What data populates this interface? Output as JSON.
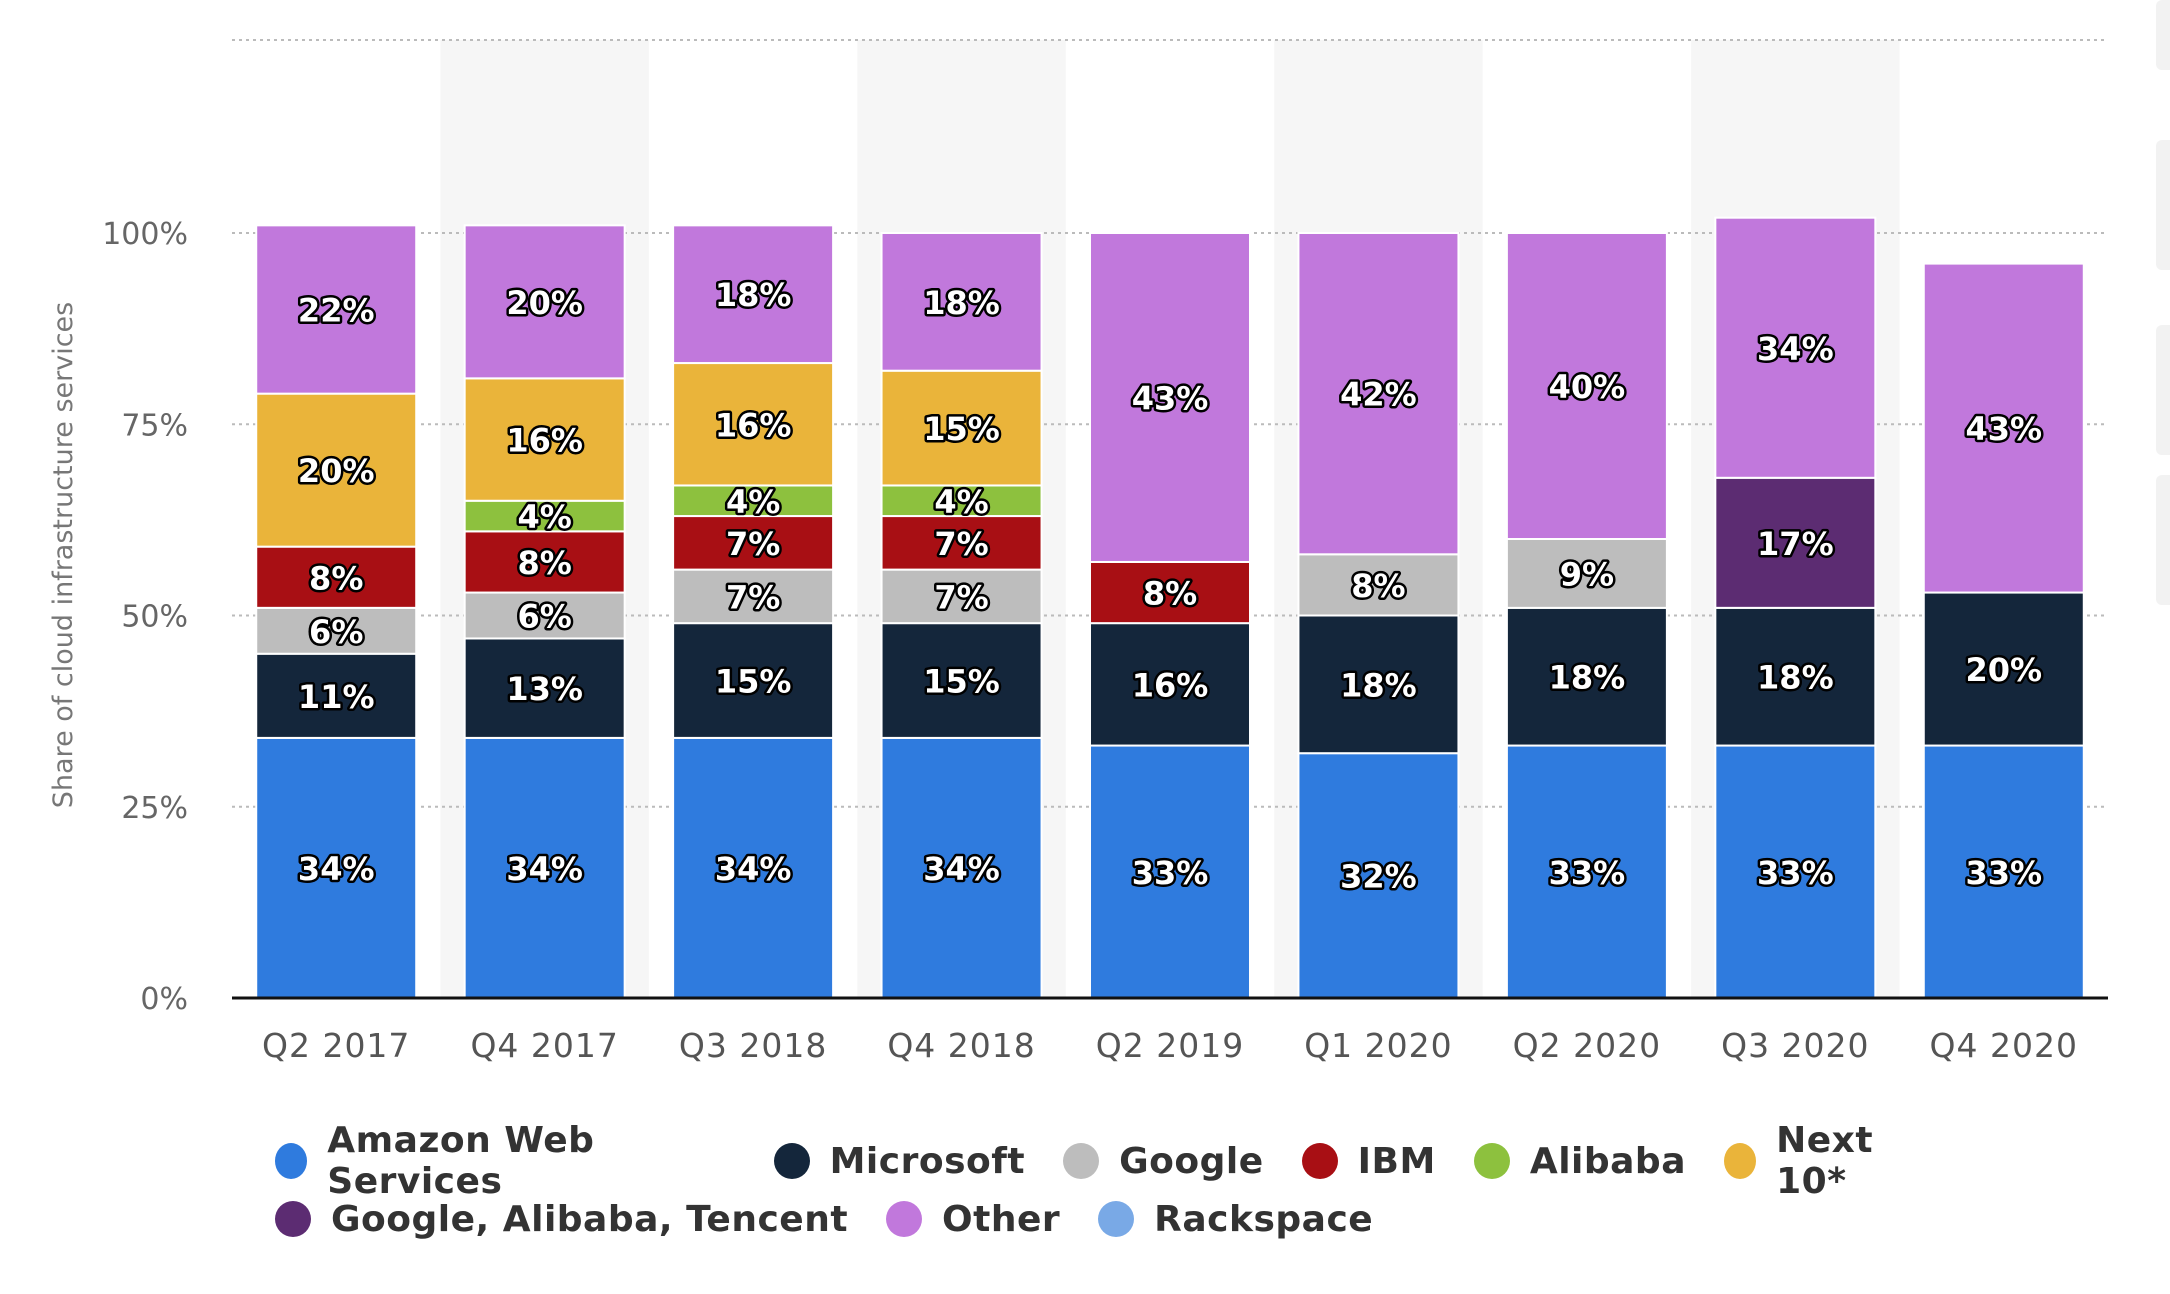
{
  "chart_data": {
    "type": "bar",
    "stacked": true,
    "title": "",
    "xlabel": "",
    "ylabel": "Share of cloud infrastructure services",
    "ylim": [
      0,
      100
    ],
    "yticks": [
      "0%",
      "25%",
      "50%",
      "75%",
      "100%"
    ],
    "categories": [
      "Q2 2017",
      "Q4 2017",
      "Q3 2018",
      "Q4 2018",
      "Q2 2019",
      "Q1 2020",
      "Q2 2020",
      "Q3 2020",
      "Q4 2020"
    ],
    "shaded_columns": [
      1,
      3,
      5,
      7
    ],
    "grid": true,
    "legend_position": "bottom",
    "series": [
      {
        "name": "Amazon Web Services",
        "color": "#2f7bde",
        "values": [
          34,
          34,
          34,
          34,
          33,
          32,
          33,
          33,
          33
        ],
        "labels": [
          "34%",
          "34%",
          "34%",
          "34%",
          "33%",
          "32%",
          "33%",
          "33%",
          "33%"
        ]
      },
      {
        "name": "Microsoft",
        "color": "#14263b",
        "values": [
          11,
          13,
          15,
          15,
          16,
          18,
          18,
          18,
          20
        ],
        "labels": [
          "11%",
          "13%",
          "15%",
          "15%",
          "16%",
          "18%",
          "18%",
          "18%",
          "20%"
        ]
      },
      {
        "name": "Google",
        "color": "#bdbdbd",
        "values": [
          6,
          6,
          7,
          7,
          0,
          8,
          9,
          0,
          0
        ],
        "labels": [
          "6%",
          "6%",
          "7%",
          "7%",
          "",
          "8%",
          "9%",
          "",
          ""
        ]
      },
      {
        "name": "IBM",
        "color": "#a80f14",
        "values": [
          8,
          8,
          7,
          7,
          8,
          0,
          0,
          0,
          0
        ],
        "labels": [
          "8%",
          "8%",
          "7%",
          "7%",
          "8%",
          "",
          "",
          "",
          ""
        ]
      },
      {
        "name": "Alibaba",
        "color": "#8dc13e",
        "values": [
          0,
          4,
          4,
          4,
          0,
          0,
          0,
          0,
          0
        ],
        "labels": [
          "",
          "4%",
          "4%",
          "4%",
          "",
          "",
          "",
          "",
          ""
        ]
      },
      {
        "name": "Next 10*",
        "color": "#eab43a",
        "values": [
          20,
          16,
          16,
          15,
          0,
          0,
          0,
          0,
          0
        ],
        "labels": [
          "20%",
          "16%",
          "16%",
          "15%",
          "",
          "",
          "",
          "",
          ""
        ]
      },
      {
        "name": "Google, Alibaba, Tencent",
        "color": "#5c2c72",
        "values": [
          0,
          0,
          0,
          0,
          0,
          0,
          0,
          17,
          0
        ],
        "labels": [
          "",
          "",
          "",
          "",
          "",
          "",
          "",
          "17%",
          ""
        ]
      },
      {
        "name": "Other",
        "color": "#c178dc",
        "values": [
          22,
          20,
          18,
          18,
          43,
          42,
          40,
          34,
          43
        ],
        "labels": [
          "22%",
          "20%",
          "18%",
          "18%",
          "43%",
          "42%",
          "40%",
          "34%",
          "43%"
        ]
      },
      {
        "name": "Rackspace",
        "color": "#79a9e6",
        "values": [
          0,
          0,
          0,
          0,
          0,
          0,
          0,
          0,
          0
        ],
        "labels": [
          "",
          "",
          "",
          "",
          "",
          "",
          "",
          "",
          ""
        ]
      }
    ]
  },
  "legend": {
    "rows": [
      [
        "Amazon Web Services",
        "Microsoft",
        "Google",
        "IBM",
        "Alibaba",
        "Next 10*"
      ],
      [
        "Google, Alibaba, Tencent",
        "Other",
        "Rackspace"
      ]
    ]
  }
}
